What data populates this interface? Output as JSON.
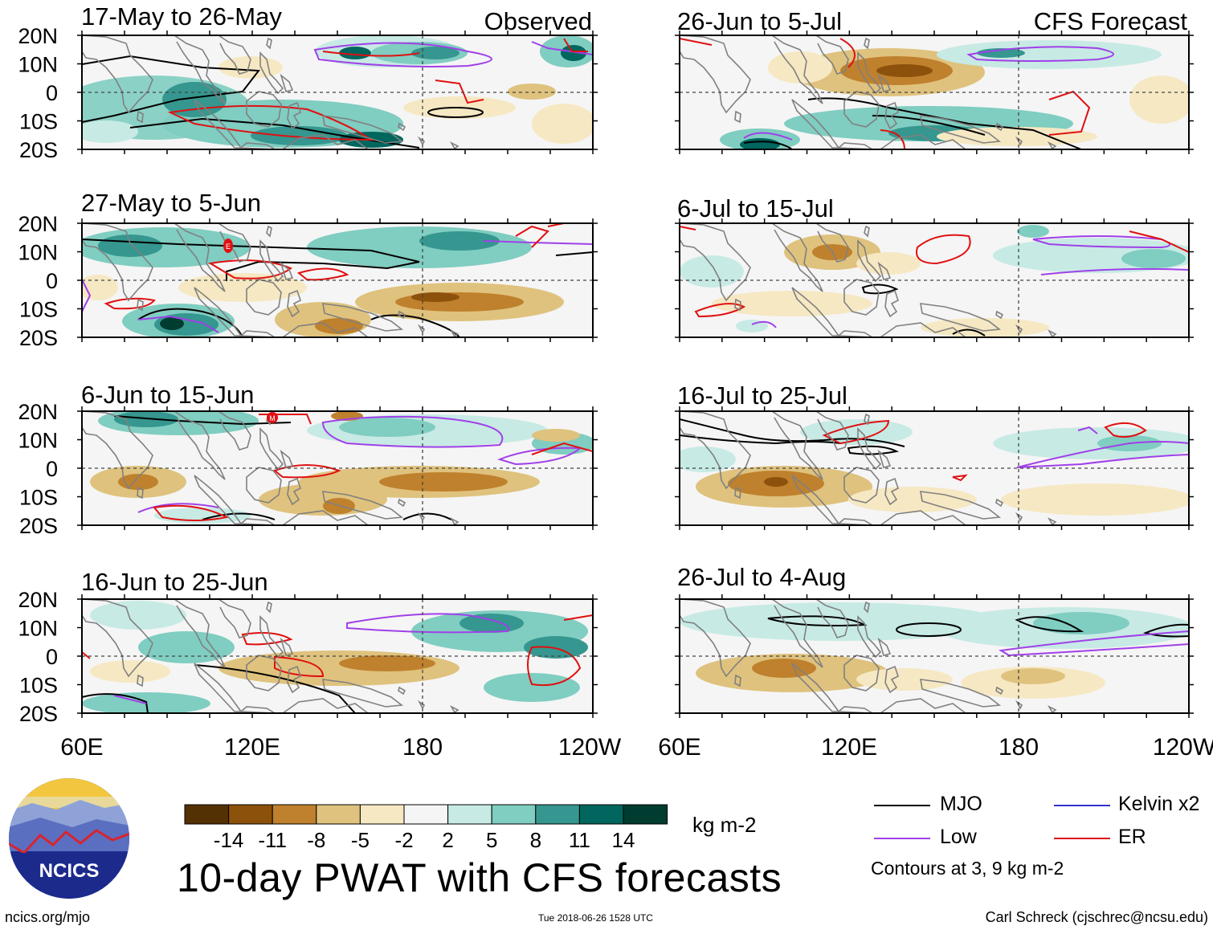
{
  "figure_title": "10-day PWAT with CFS forecasts",
  "site_url": "ncics.org/mjo",
  "timestamp": "Tue 2018-06-26 1528 UTC",
  "author": "Carl Schreck (cjschrec@ncsu.edu)",
  "logo_text": "NCICS",
  "headers": {
    "observed": "Observed",
    "forecast": "CFS Forecast"
  },
  "lat_labels": [
    "20N",
    "10N",
    "0",
    "10S",
    "20S"
  ],
  "lon_labels": [
    "60E",
    "120E",
    "180",
    "120W"
  ],
  "panels_left": [
    "17-May to 26-May",
    "27-May to 5-Jun",
    "6-Jun to 15-Jun",
    "16-Jun to 25-Jun"
  ],
  "panels_right": [
    "26-Jun to 5-Jul",
    "6-Jul to 15-Jul",
    "16-Jul to 25-Jul",
    "26-Jul to 4-Aug"
  ],
  "markers": {
    "panel2": "E",
    "panel3": "M"
  },
  "colorbar": {
    "unit": "kg m-2",
    "tick_labels": [
      "-14",
      "-11",
      "-8",
      "-5",
      "-2",
      "2",
      "5",
      "8",
      "11",
      "14"
    ],
    "colors": [
      "#543005",
      "#8c510a",
      "#bf812d",
      "#dfc27d",
      "#f6e8c3",
      "#f5f5f5",
      "#c7eae5",
      "#80cdc1",
      "#35978f",
      "#01665e",
      "#003c30"
    ]
  },
  "legend": {
    "items": [
      {
        "label": "MJO",
        "color": "#000000"
      },
      {
        "label": "Kelvin x2",
        "color": "#3333cc"
      },
      {
        "label": "Low",
        "color": "#a040e8"
      },
      {
        "label": "ER",
        "color": "#e01010"
      }
    ],
    "contour_note": "Contours at 3, 9 kg m-2"
  }
}
